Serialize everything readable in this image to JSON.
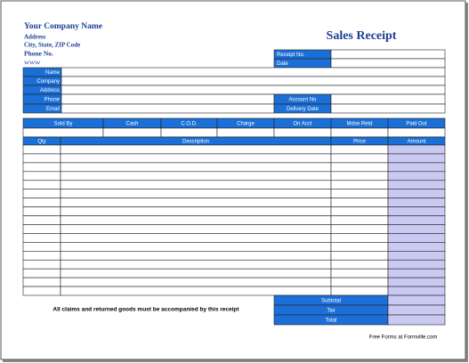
{
  "company": {
    "name": "Your Company Name",
    "address": "Address",
    "city": "City, State, ZIP Code",
    "phone": "Phone No.",
    "web": "WWW"
  },
  "title": "Sales Receipt",
  "receipt_fields": [
    "Receipt No.",
    "Date"
  ],
  "customer_fields": [
    "Name",
    "Company",
    "Address",
    "Phone",
    "Email"
  ],
  "account_fields": [
    "Account No",
    "Delivery Date"
  ],
  "payment_headers": [
    "Sold By",
    "Cash",
    "C.O.D.",
    "Charge",
    "On Acct",
    "Mdse Retd",
    "Paid Out"
  ],
  "item_headers": [
    "Qty",
    "Description",
    "Price",
    "Amount"
  ],
  "notice": "All claims and returned goods must be accompanied by this receipt",
  "totals": [
    "Subtotal",
    "Tax",
    "Total"
  ],
  "footer": "Free Forms at Formville.com"
}
